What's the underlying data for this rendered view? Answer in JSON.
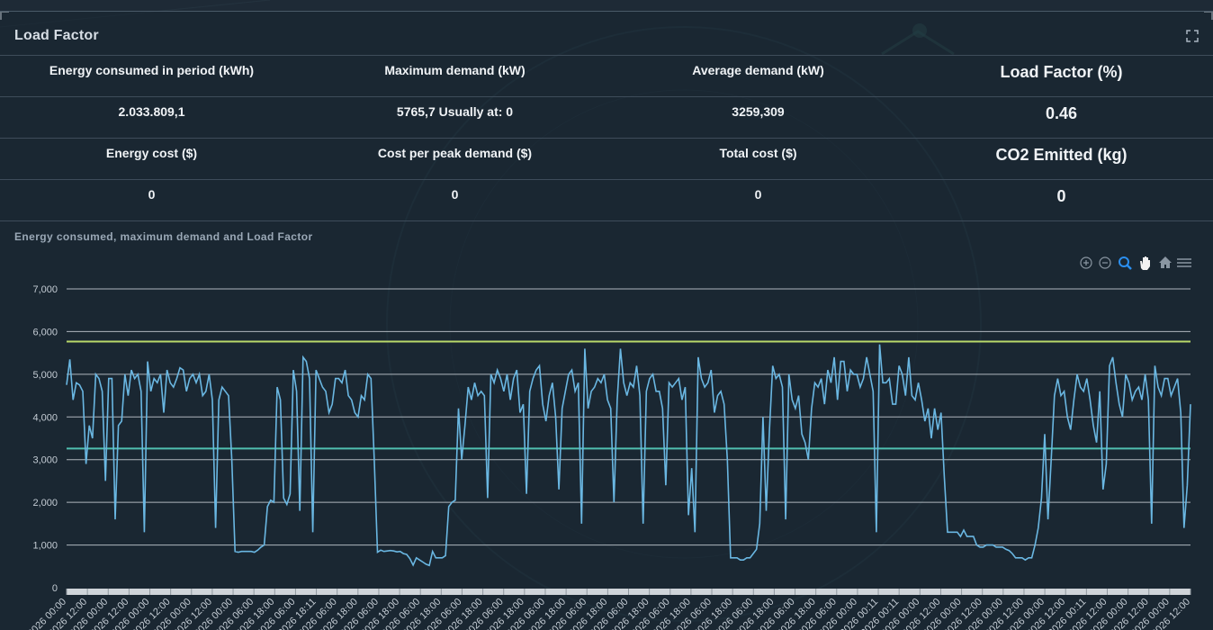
{
  "panel": {
    "title": "Load Factor"
  },
  "kpis": {
    "row1_labels": [
      "Energy consumed in period (kWh)",
      "Maximum demand (kW)",
      "Average demand (kW)",
      "Load Factor (%)"
    ],
    "row1_values": [
      "2.033.809,1",
      "5765,7 Usually at: 0",
      "3259,309",
      "0.46"
    ],
    "row2_labels": [
      "Energy cost ($)",
      "Cost per peak demand ($)",
      "Total cost ($)",
      "CO2 Emitted (kg)"
    ],
    "row2_values": [
      "0",
      "0",
      "0",
      "0"
    ]
  },
  "chart_title": "Energy consumed, maximum demand and Load Factor",
  "toolbar": [
    "zoom-in-icon",
    "zoom-out-icon",
    "selection-zoom-icon",
    "pan-icon",
    "reset-zoom-icon",
    "menu-icon"
  ],
  "colors": {
    "demand": "#6ab7e2",
    "max_line": "#b9d96a",
    "avg_line": "#4fbfb0",
    "grid": "#c9d0d6"
  },
  "chart_data": {
    "type": "line",
    "ylim": [
      0,
      7000
    ],
    "yticks": [
      0,
      1000,
      2000,
      3000,
      4000,
      5000,
      6000,
      7000
    ],
    "ytick_labels": [
      "0",
      "1,000",
      "2,000",
      "3,000",
      "4,000",
      "5,000",
      "6,000",
      "7,000"
    ],
    "xtick_labels": [
      "/2026 00:00",
      "/2026 12:00",
      "/2026 00:00",
      "/2026 12:00",
      "/2026 00:00",
      "/2026 12:00",
      "/2026 00:00",
      "/2026 12:00",
      "/2026 00:00",
      "/2026 06:00",
      "/2026 18:00",
      "/2026 06:00",
      "/2026 18:11",
      "/2026 06:00",
      "/2026 18:00",
      "/2026 06:00",
      "/2026 18:00",
      "/2026 06:00",
      "/2026 18:00",
      "/2026 06:00",
      "/2026 18:00",
      "/2026 06:00",
      "/2026 18:00",
      "/2026 06:00",
      "/2026 18:00",
      "/2026 06:00",
      "/2026 18:00",
      "/2026 06:00",
      "/2026 18:00",
      "/2026 06:00",
      "/2026 18:00",
      "/2026 06:00",
      "/2026 18:00",
      "/2026 06:00",
      "/2026 18:00",
      "/2026 06:00",
      "/2026 18:00",
      "/2026 06:00",
      "/2026 00:00",
      "/2026 00:11",
      "/2026 00:11",
      "/2026 00:00",
      "/2026 12:00",
      "/2026 00:00",
      "/2026 12:00",
      "/2026 00:00",
      "/2026 12:00",
      "/2026 00:00",
      "/2026 12:00",
      "/2026 00:11",
      "/2026 12:00",
      "/2026 00:00",
      "/2026 12:00",
      "/2026 00:00",
      "/2026 12:00"
    ],
    "max_demand": 5765.7,
    "avg_demand": 3259.309,
    "series": [
      {
        "values": [
          4750,
          5350,
          4400,
          4800,
          4750,
          4600,
          2900,
          3800,
          3500,
          5000,
          4900,
          4600,
          2500,
          4900,
          4900,
          1600,
          3800,
          3900,
          5000,
          4500,
          5100,
          4900,
          5000,
          4600,
          1300,
          5300,
          4600,
          4900,
          4800,
          5000,
          4100,
          5100,
          4800,
          4700,
          4900,
          5150,
          5100,
          4600,
          4900,
          5000,
          4800,
          5000,
          4500,
          4600,
          5000,
          4400,
          1400,
          4400,
          4700,
          4600,
          4500,
          3000,
          850,
          830,
          850,
          850,
          850,
          850,
          830,
          880,
          950,
          1000,
          1900,
          2050,
          2000,
          4700,
          4400,
          2100,
          1950,
          2200,
          5100,
          4600,
          1800,
          5400,
          5300,
          4900,
          1300,
          5100,
          4900,
          4700,
          4600,
          4100,
          4300,
          4900,
          4900,
          4800,
          5100,
          4500,
          4400,
          4100,
          4000,
          4500,
          4400,
          5000,
          4900,
          3000,
          830,
          880,
          850,
          860,
          870,
          860,
          840,
          850,
          800,
          780,
          680,
          530,
          700,
          650,
          600,
          550,
          520,
          850,
          700,
          700,
          700,
          750,
          1900,
          2000,
          2050,
          4200,
          3000,
          3800,
          4700,
          4400,
          4800,
          4500,
          4600,
          4500,
          2100,
          5000,
          4800,
          5100,
          4900,
          4600,
          5000,
          4400,
          4900,
          5100,
          4100,
          4300,
          2200,
          4600,
          4900,
          5100,
          5200,
          4300,
          3900,
          4500,
          4800,
          4000,
          2300,
          4200,
          4600,
          5000,
          5100,
          4600,
          4800,
          1500,
          5600,
          4200,
          4600,
          4700,
          4900,
          4800,
          5000,
          4400,
          4200,
          2000,
          4400,
          5600,
          4800,
          4500,
          4800,
          4700,
          5200,
          4500,
          1500,
          4600,
          4900,
          5000,
          4600,
          4600,
          4200,
          2400,
          4800,
          4700,
          4800,
          4900,
          4400,
          4700,
          1700,
          2800,
          1300,
          5400,
          4900,
          4700,
          4800,
          5100,
          4100,
          4500,
          4600,
          4300,
          3000,
          700,
          700,
          700,
          650,
          650,
          700,
          700,
          800,
          900,
          1500,
          4000,
          1800,
          3700,
          5200,
          4900,
          5000,
          4700,
          1600,
          5000,
          4400,
          4200,
          4500,
          3600,
          3400,
          3000,
          4200,
          4800,
          4700,
          4900,
          4300,
          5100,
          4800,
          5400,
          4400,
          5300,
          5300,
          4600,
          5100,
          5000,
          5000,
          4700,
          4900,
          5400,
          5000,
          4600,
          1300,
          5700,
          4800,
          4800,
          4900,
          4300,
          4300,
          5200,
          5000,
          4500,
          5400,
          4500,
          4400,
          4800,
          4400,
          3900,
          4200,
          3500,
          4200,
          3700,
          4100,
          2600,
          1300,
          1300,
          1300,
          1300,
          1200,
          1350,
          1200,
          1200,
          1200,
          1000,
          950,
          950,
          1000,
          1000,
          1000,
          950,
          950,
          950,
          900,
          870,
          800,
          700,
          700,
          700,
          650,
          700,
          700,
          1000,
          1400,
          2100,
          3600,
          1600,
          3000,
          4500,
          4900,
          4500,
          4600,
          4000,
          3700,
          4400,
          5000,
          4700,
          4600,
          4900,
          4400,
          3800,
          3400,
          4600,
          2300,
          2900,
          5200,
          5400,
          4800,
          4300,
          4000,
          5000,
          4800,
          4400,
          4600,
          4700,
          4400,
          5000,
          4400,
          1500,
          5200,
          4700,
          4500,
          4900,
          4900,
          4500,
          4700,
          4900,
          4100,
          1400,
          2400,
          4300
        ]
      }
    ]
  }
}
